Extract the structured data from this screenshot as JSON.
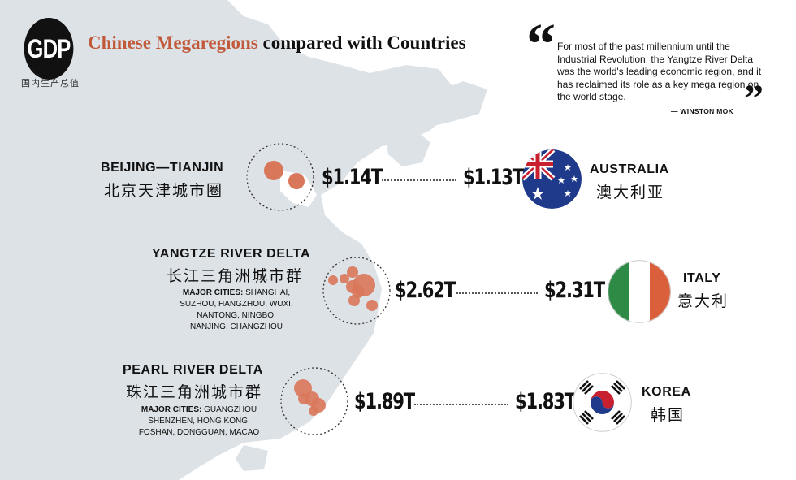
{
  "header": {
    "badge": "GDP",
    "badge_sub": "国内生产总值",
    "title_accent": "Chinese Megaregions",
    "title_rest": " compared with Countries"
  },
  "quote": {
    "text": "For most of the past millennium until the Industrial Revolution, the Yangtze River Delta was the world's leading economic region, and it has reclaimed its role as a key mega region on the world stage.",
    "author": "— WINSTON MOK"
  },
  "rows": [
    {
      "region": "BEIJING—TIANJIN",
      "region_cn": "北京天津城市圈",
      "cities_label": "",
      "cities": "",
      "region_gdp": "$1.14T",
      "country_gdp": "$1.13T",
      "country": "AUSTRALIA",
      "country_cn": "澳大利亚",
      "flag_icon": "australia-flag-icon"
    },
    {
      "region": "YANGTZE RIVER DELTA",
      "region_cn": "长江三角洲城市群",
      "cities_label": "MAJOR CITIES:",
      "cities_1": " SHANGHAI,",
      "cities_2": "SUZHOU, HANGZHOU, WUXI,",
      "cities_3": "NANTONG, NINGBO,",
      "cities_4": "NANJING, CHANGZHOU",
      "region_gdp": "$2.62T",
      "country_gdp": "$2.31T",
      "country": "ITALY",
      "country_cn": "意大利",
      "flag_icon": "italy-flag-icon"
    },
    {
      "region": "PEARL RIVER DELTA",
      "region_cn": "珠江三角洲城市群",
      "cities_label": "MAJOR CITIES:",
      "cities_1": " GUANGZHOU",
      "cities_2": "SHENZHEN, HONG KONG,",
      "cities_3": "FOSHAN, DONGGUAN, MACAO",
      "region_gdp": "$1.89T",
      "country_gdp": "$1.83T",
      "country": "KOREA",
      "country_cn": "韩国",
      "flag_icon": "korea-flag-icon"
    }
  ],
  "colors": {
    "accent": "#c05a3a",
    "map": "#dde2e7",
    "bubble": "#d9775a"
  }
}
